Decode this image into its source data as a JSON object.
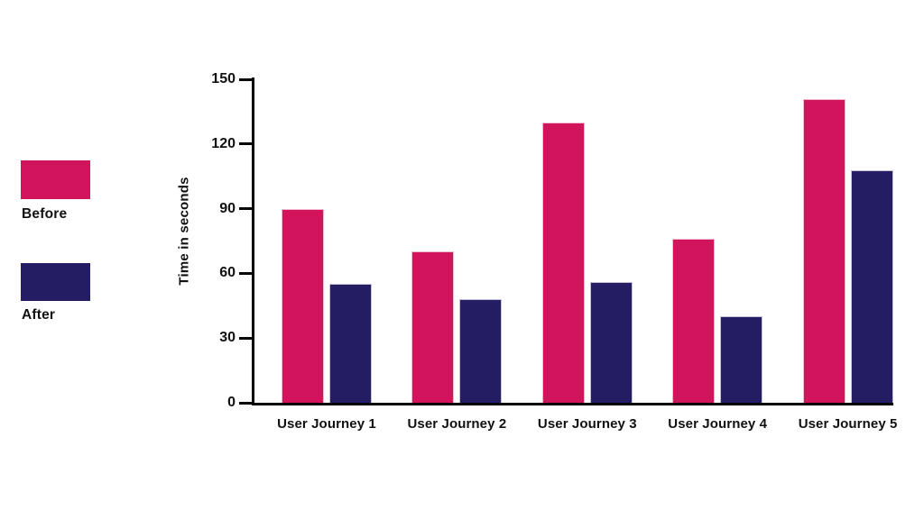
{
  "chart_data": {
    "type": "bar",
    "title": "",
    "xlabel": "",
    "ylabel": "Time in seconds",
    "categories": [
      "User Journey 1",
      "User Journey 2",
      "User Journey 3",
      "User Journey 4",
      "User Journey 5"
    ],
    "series": [
      {
        "name": "Before",
        "color": "#D1145C",
        "border_color": "#F0B9CE",
        "values": [
          90,
          70,
          130,
          76,
          141
        ]
      },
      {
        "name": "After",
        "color": "#251D63",
        "border_color": "#C4C0D9",
        "values": [
          55,
          48,
          56,
          40,
          108
        ]
      }
    ],
    "ylim": [
      0,
      150
    ],
    "yticks": [
      0,
      30,
      60,
      90,
      120,
      150
    ],
    "grid": false,
    "legend_position": "left",
    "background": "#FFFFFF",
    "axis_color": "#000000"
  }
}
